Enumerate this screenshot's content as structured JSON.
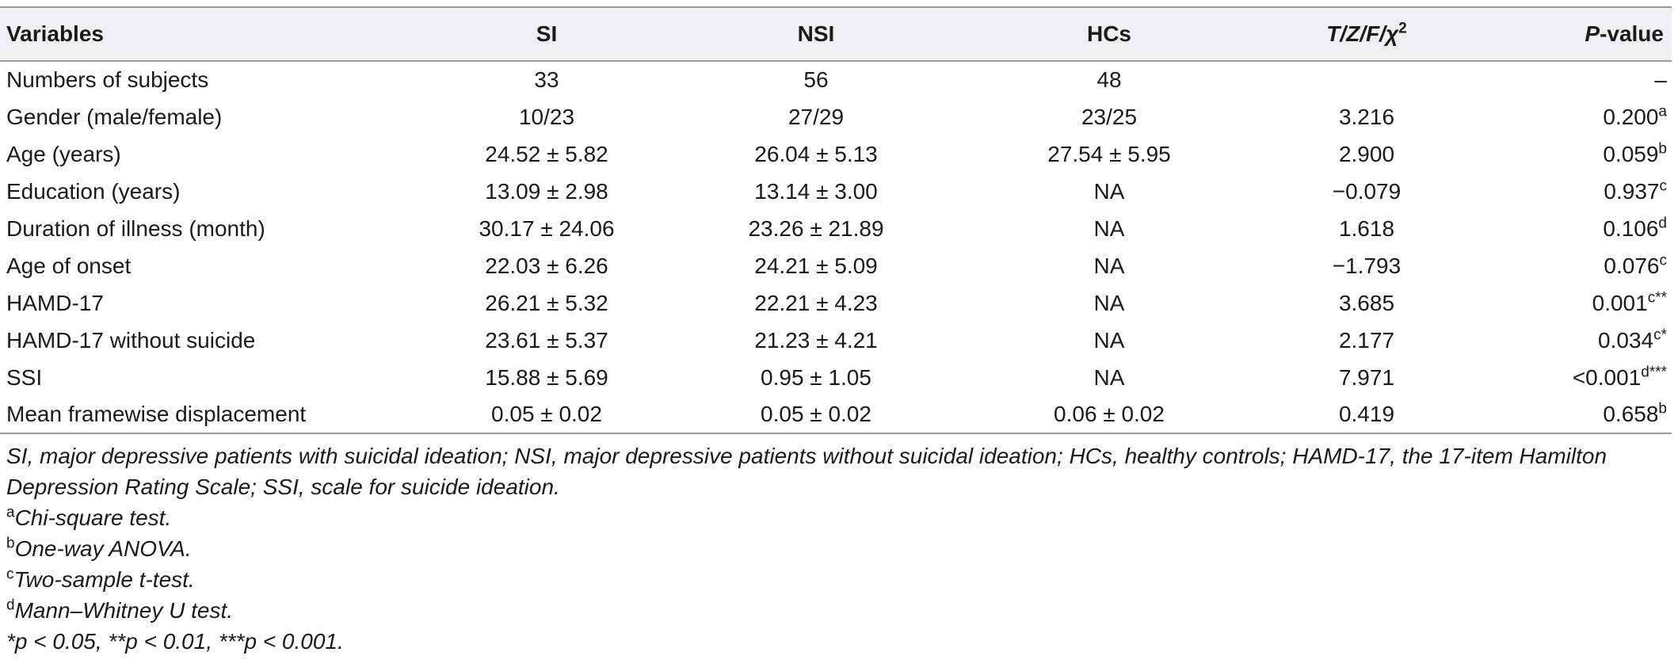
{
  "table": {
    "headers": {
      "variables": "Variables",
      "si": "SI",
      "nsi": "NSI",
      "hcs": "HCs",
      "stat": "T/Z/F/χ",
      "stat_sup": "2",
      "p_label": "P",
      "p_suffix": "-value"
    },
    "rows": [
      {
        "variable": "Numbers of subjects",
        "si": "33",
        "nsi": "56",
        "hcs": "48",
        "stat": "",
        "p": "–",
        "p_sup": ""
      },
      {
        "variable": "Gender (male/female)",
        "si": "10/23",
        "nsi": "27/29",
        "hcs": "23/25",
        "stat": "3.216",
        "p": "0.200",
        "p_sup": "a"
      },
      {
        "variable": "Age (years)",
        "si": "24.52 ± 5.82",
        "nsi": "26.04 ± 5.13",
        "hcs": "27.54 ± 5.95",
        "stat": "2.900",
        "p": "0.059",
        "p_sup": "b"
      },
      {
        "variable": "Education (years)",
        "si": "13.09 ± 2.98",
        "nsi": "13.14 ± 3.00",
        "hcs": "NA",
        "stat": "−0.079",
        "p": "0.937",
        "p_sup": "c"
      },
      {
        "variable": "Duration of illness (month)",
        "si": "30.17 ± 24.06",
        "nsi": "23.26 ± 21.89",
        "hcs": "NA",
        "stat": "1.618",
        "p": "0.106",
        "p_sup": "d"
      },
      {
        "variable": "Age of onset",
        "si": "22.03 ± 6.26",
        "nsi": "24.21 ± 5.09",
        "hcs": "NA",
        "stat": "−1.793",
        "p": "0.076",
        "p_sup": "c"
      },
      {
        "variable": "HAMD-17",
        "si": "26.21 ± 5.32",
        "nsi": "22.21 ± 4.23",
        "hcs": "NA",
        "stat": "3.685",
        "p": "0.001",
        "p_sup": "c**"
      },
      {
        "variable": "HAMD-17 without suicide",
        "si": "23.61 ± 5.37",
        "nsi": "21.23 ± 4.21",
        "hcs": "NA",
        "stat": "2.177",
        "p": "0.034",
        "p_sup": "c*"
      },
      {
        "variable": "SSI",
        "si": "15.88 ± 5.69",
        "nsi": "0.95 ± 1.05",
        "hcs": "NA",
        "stat": "7.971",
        "p": "<0.001",
        "p_sup": "d***"
      },
      {
        "variable": "Mean framewise displacement",
        "si": "0.05 ± 0.02",
        "nsi": "0.05 ± 0.02",
        "hcs": "0.06 ± 0.02",
        "stat": "0.419",
        "p": "0.658",
        "p_sup": "b"
      }
    ]
  },
  "footnotes": {
    "abbreviations": "SI, major depressive patients with suicidal ideation; NSI, major depressive patients without suicidal ideation; HCs, healthy controls; HAMD-17, the 17-item Hamilton Depression Rating Scale; SSI, scale for suicide ideation.",
    "notes": [
      {
        "marker": "a",
        "text": "Chi-square test."
      },
      {
        "marker": "b",
        "text": "One-way ANOVA."
      },
      {
        "marker": "c",
        "text": "Two-sample t-test."
      },
      {
        "marker": "d",
        "text": "Mann–Whitney U test."
      }
    ],
    "significance": "*p < 0.05, **p < 0.01, ***p < 0.001."
  }
}
